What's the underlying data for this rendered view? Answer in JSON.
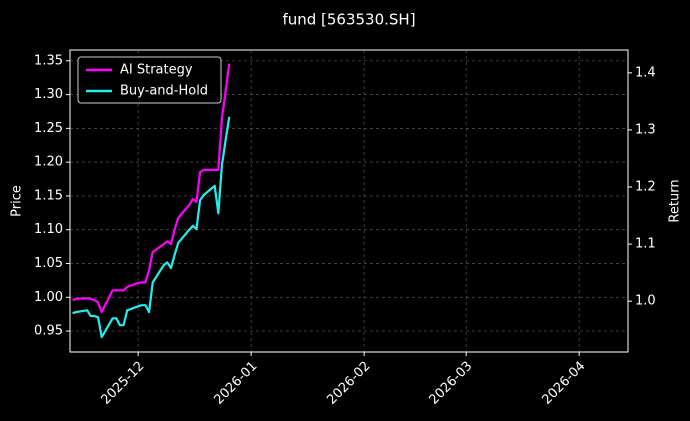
{
  "chart_data": {
    "type": "line",
    "title": "fund [563530.SH]",
    "ylabel": "Price",
    "y2label": "Return",
    "x": [
      -18,
      -17,
      -14,
      -13,
      -12,
      -11,
      -10,
      -7,
      -6,
      -5,
      -4,
      -3,
      0,
      1,
      2,
      3,
      4,
      7,
      8,
      9,
      10,
      11,
      14,
      15,
      16,
      17,
      18,
      21,
      22,
      23,
      24,
      25
    ],
    "xlim": [
      -18.7,
      134.4
    ],
    "xticks": [
      {
        "value": 0,
        "label": "2025-12"
      },
      {
        "value": 31,
        "label": "2026-01"
      },
      {
        "value": 62,
        "label": "2026-02"
      },
      {
        "value": 90,
        "label": "2026-03"
      },
      {
        "value": 121,
        "label": "2026-04"
      }
    ],
    "ylim": [
      0.919,
      1.366
    ],
    "yticks": [
      {
        "value": 0.95,
        "label": "0.95"
      },
      {
        "value": 1.0,
        "label": "1.00"
      },
      {
        "value": 1.05,
        "label": "1.05"
      },
      {
        "value": 1.1,
        "label": "1.10"
      },
      {
        "value": 1.15,
        "label": "1.15"
      },
      {
        "value": 1.2,
        "label": "1.20"
      },
      {
        "value": 1.25,
        "label": "1.25"
      },
      {
        "value": 1.3,
        "label": "1.30"
      },
      {
        "value": 1.35,
        "label": "1.35"
      }
    ],
    "y2lim": [
      0.911,
      1.44
    ],
    "y2ticks": [
      {
        "value": 1.0,
        "label": "1.0"
      },
      {
        "value": 1.1,
        "label": "1.1"
      },
      {
        "value": 1.2,
        "label": "1.2"
      },
      {
        "value": 1.3,
        "label": "1.3"
      },
      {
        "value": 1.4,
        "label": "1.4"
      }
    ],
    "grid": true,
    "legend": "upper left",
    "series": [
      {
        "name": "AI Strategy",
        "color": "#ff00ff",
        "axis": "y2",
        "values": [
          1.002,
          1.004,
          1.005,
          1.004,
          1.002,
          0.998,
          0.981,
          1.019,
          1.019,
          1.019,
          1.019,
          1.025,
          1.032,
          1.033,
          1.033,
          1.054,
          1.086,
          1.1,
          1.105,
          1.1,
          1.125,
          1.146,
          1.168,
          1.179,
          1.174,
          1.226,
          1.23,
          1.23,
          1.23,
          1.321,
          1.367,
          1.416
        ]
      },
      {
        "name": "Buy-and-Hold",
        "color": "#22eeee",
        "axis": "y2",
        "values": [
          0.979,
          0.981,
          0.984,
          0.974,
          0.974,
          0.972,
          0.937,
          0.97,
          0.97,
          0.958,
          0.958,
          0.984,
          0.991,
          0.993,
          0.993,
          0.981,
          1.033,
          1.063,
          1.068,
          1.058,
          1.081,
          1.102,
          1.125,
          1.132,
          1.126,
          1.177,
          1.186,
          1.202,
          1.154,
          1.239,
          1.282,
          1.323
        ]
      }
    ]
  }
}
